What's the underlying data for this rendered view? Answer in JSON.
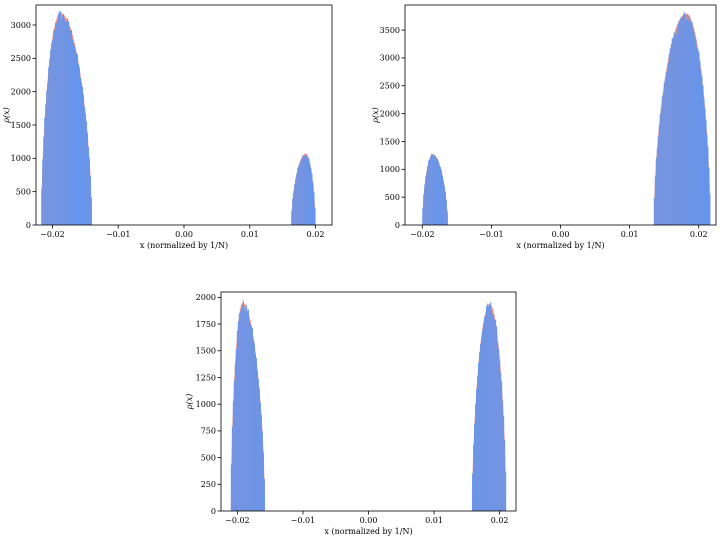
{
  "chart_data": [
    {
      "type": "histogram",
      "xlabel": "x (normalized by 1/N)",
      "ylabel": "ρ(x)",
      "xlim": [
        -0.0225,
        0.0225
      ],
      "ylim": [
        0,
        3300
      ],
      "xticks": [
        -0.02,
        -0.01,
        0.0,
        0.01,
        0.02
      ],
      "xtick_labels": [
        "−0.02",
        "−0.01",
        "0.00",
        "0.01",
        "0.02"
      ],
      "yticks": [
        0,
        500,
        1000,
        1500,
        2000,
        2500,
        3000
      ],
      "yticklabels": [
        "0",
        "500",
        "1000",
        "1500",
        "2000",
        "2500",
        "3000"
      ],
      "grid": false,
      "colors": {
        "histogram": "#6495ed",
        "theory_curve": "#f08070"
      },
      "lobes": [
        {
          "x_start": -0.0217,
          "x_end": -0.014,
          "peak_x": -0.0188,
          "peak_y": 3150
        },
        {
          "x_start": 0.0163,
          "x_end": 0.02,
          "peak_x": 0.0185,
          "peak_y": 1060
        }
      ]
    },
    {
      "type": "histogram",
      "xlabel": "x (normalized by 1/N)",
      "ylabel": "ρ(x)",
      "xlim": [
        -0.0225,
        0.0225
      ],
      "ylim": [
        0,
        3950
      ],
      "xticks": [
        -0.02,
        -0.01,
        0.0,
        0.01,
        0.02
      ],
      "xtick_labels": [
        "−0.02",
        "−0.01",
        "0.00",
        "0.01",
        "0.02"
      ],
      "yticks": [
        0,
        500,
        1000,
        1500,
        2000,
        2500,
        3000,
        3500
      ],
      "yticklabels": [
        "0",
        "500",
        "1000",
        "1500",
        "2000",
        "2500",
        "3000",
        "3500"
      ],
      "grid": false,
      "colors": {
        "histogram": "#6495ed",
        "theory_curve": "#f08070"
      },
      "lobes": [
        {
          "x_start": -0.02,
          "x_end": -0.0163,
          "peak_x": -0.0185,
          "peak_y": 1260
        },
        {
          "x_start": 0.0135,
          "x_end": 0.0217,
          "peak_x": 0.0182,
          "peak_y": 3760
        }
      ]
    },
    {
      "type": "histogram",
      "xlabel": "x (normalized by 1/N)",
      "ylabel": "ρ(x)",
      "xlim": [
        -0.0225,
        0.0225
      ],
      "ylim": [
        0,
        2050
      ],
      "xticks": [
        -0.02,
        -0.01,
        0.0,
        0.01,
        0.02
      ],
      "xtick_labels": [
        "−0.02",
        "−0.01",
        "0.00",
        "0.01",
        "0.02"
      ],
      "yticks": [
        0,
        250,
        500,
        750,
        1000,
        1250,
        1500,
        1750,
        2000
      ],
      "yticklabels": [
        "0",
        "250",
        "500",
        "750",
        "1000",
        "1250",
        "1500",
        "1750",
        "2000"
      ],
      "grid": false,
      "colors": {
        "histogram": "#6495ed",
        "theory_curve": "#f08070"
      },
      "lobes": [
        {
          "x_start": -0.021,
          "x_end": -0.0158,
          "peak_x": -0.0192,
          "peak_y": 1930
        },
        {
          "x_start": 0.0158,
          "x_end": 0.021,
          "peak_x": 0.0185,
          "peak_y": 1920
        }
      ]
    }
  ]
}
